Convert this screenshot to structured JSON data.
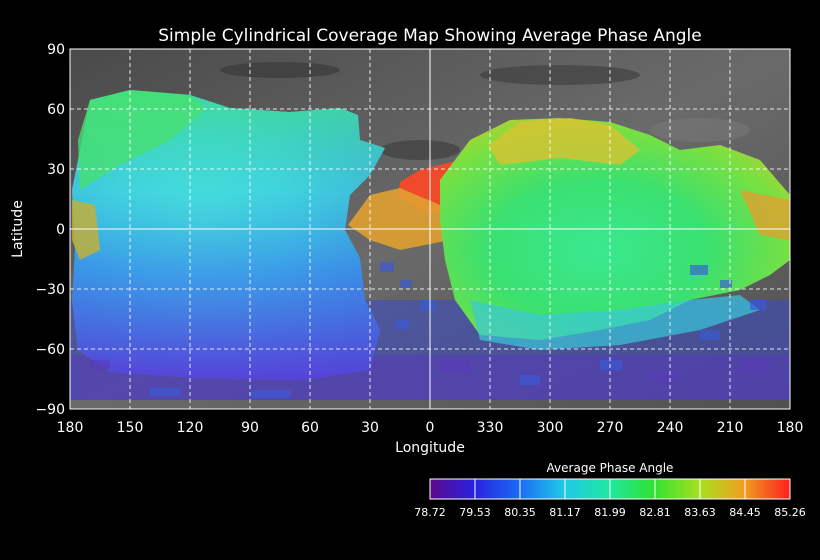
{
  "title": "Simple Cylindrical Coverage Map Showing Average Phase Angle",
  "axes": {
    "xlabel": "Longitude",
    "ylabel": "Latitude",
    "x_ticks": [
      "180",
      "150",
      "120",
      "90",
      "60",
      "30",
      "0",
      "330",
      "300",
      "270",
      "240",
      "210",
      "180"
    ],
    "y_ticks": [
      "90",
      "60",
      "30",
      "0",
      "−30",
      "−60",
      "−90"
    ],
    "grid": true
  },
  "colorbar": {
    "title": "Average Phase Angle",
    "tick_labels": [
      "78.72",
      "79.53",
      "80.35",
      "81.17",
      "81.99",
      "82.81",
      "83.63",
      "84.45",
      "85.26"
    ],
    "colors": [
      "#5b0a8a",
      "#2a1fe0",
      "#1a6cf5",
      "#1fc8e8",
      "#1fe8a0",
      "#30e030",
      "#a8e020",
      "#f0b020",
      "#f07020",
      "#ff1f1f"
    ]
  },
  "colors": {
    "background": "#000000",
    "grid": "#ffffff",
    "unmapped": "#5a5a5a"
  }
}
